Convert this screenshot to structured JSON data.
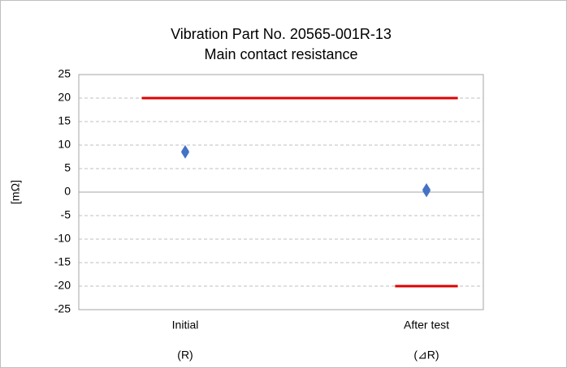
{
  "chart_data": {
    "type": "scatter",
    "title_lines": [
      "Vibration Part No. 20565-001R-13",
      "Main contact resistance"
    ],
    "y_label": "[mΩ]",
    "categories": [
      "Initial",
      "After test"
    ],
    "sublabels": [
      "(R)",
      "(⊿R)"
    ],
    "series": [
      {
        "marker": "triangle-up",
        "color": "#4472c4",
        "values": [
          9.3,
          1.2
        ]
      },
      {
        "marker": "diamond",
        "color": "#4472c4",
        "values": [
          8.5,
          0.4
        ]
      },
      {
        "marker": "triangle-down",
        "color": "#4472c4",
        "values": [
          7.8,
          -0.4
        ]
      }
    ],
    "limit_lines": [
      {
        "y": 20,
        "from": -0.18,
        "to": 1.13,
        "color": "#e00000"
      },
      {
        "y": -20,
        "from": 0.87,
        "to": 1.13,
        "color": "#e00000"
      }
    ],
    "ylim": [
      -25,
      25
    ],
    "yticks": [
      -25,
      -20,
      -15,
      -10,
      -5,
      0,
      5,
      10,
      15,
      20,
      25
    ],
    "grid": true
  }
}
